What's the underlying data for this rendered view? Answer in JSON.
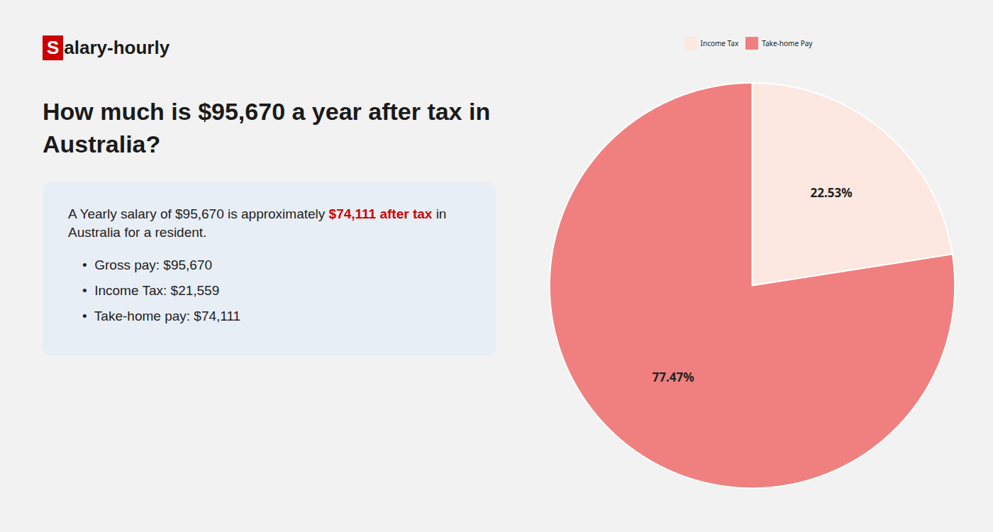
{
  "chart_data": {
    "type": "pie",
    "title": "How much is $95,670 a year after tax in\nAustralia?",
    "annotations": [
      [
        {
          "text": "S",
          "color": "#cc0000"
        },
        {
          "text": "alary-hourly"
        }
      ],
      [
        {
          "text": "A Yearly salary of $95,670 is approximately "
        },
        {
          "text": "$74,111 after tax",
          "color": "#cc0000"
        },
        {
          "text": " in"
        }
      ],
      [
        {
          "text": "Australia for a resident."
        }
      ],
      [
        {
          "text": "•  Gross pay: $95,670"
        }
      ],
      [
        {
          "text": "•  Income Tax: $21,559"
        }
      ],
      [
        {
          "text": "•  Take-home pay: $74,111"
        }
      ]
    ],
    "categories": [
      "Income Tax",
      "Take-home Pay"
    ],
    "values": [
      22.53,
      77.47
    ],
    "colors": [
      "#fce8e0",
      "#f08080"
    ],
    "data_labels": true,
    "value_labels": [
      "22.53%",
      "77.47%"
    ],
    "legend": "top"
  }
}
